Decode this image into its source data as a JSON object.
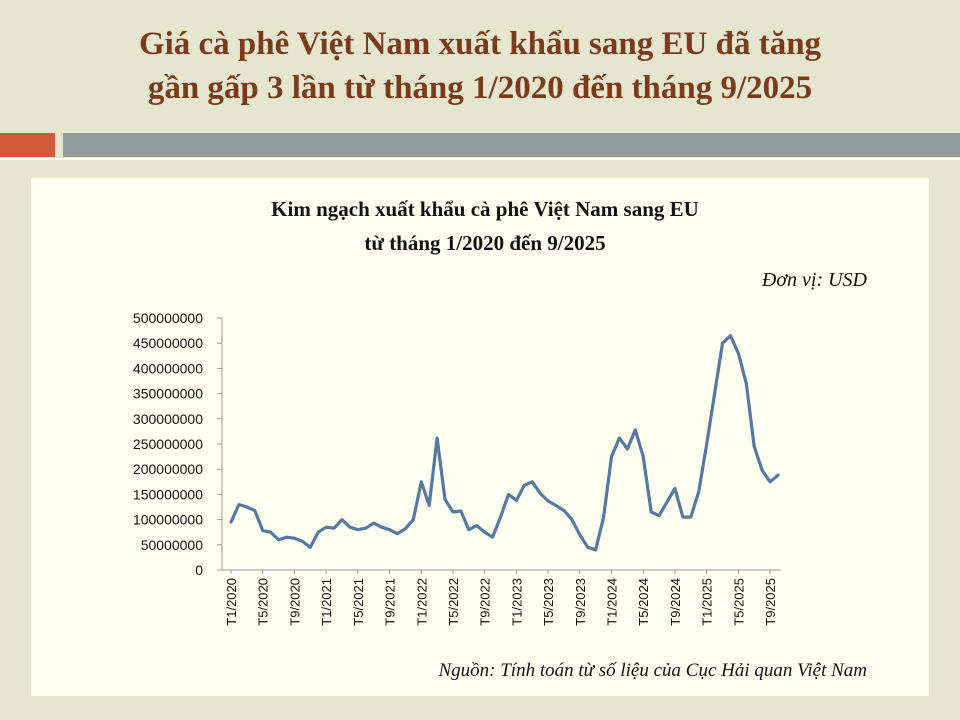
{
  "slide": {
    "title_line1": "Giá cà phê Việt Nam xuất khẩu sang EU đã tăng",
    "title_line2": "gần gấp 3 lần từ tháng 1/2020 đến tháng 9/2025"
  },
  "colors": {
    "background": "#e6e6cf",
    "title": "#7a3b1c",
    "accent_red": "#cf5b3c",
    "accent_gray": "#909c99",
    "line": "#5679a0"
  },
  "chart_data": {
    "type": "line",
    "title": "Kim ngạch xuất khẩu cà phê Việt Nam sang EU",
    "subtitle": "từ tháng  1/2020 đến  9/2025",
    "unit_label": "Đơn vị: USD",
    "source": "Nguồn: Tính toán từ số liệu của Cục Hải quan Việt Nam",
    "ylim": [
      0,
      500000000
    ],
    "yticks": [
      "500000000",
      "450000000",
      "400000000",
      "350000000",
      "300000000",
      "250000000",
      "200000000",
      "150000000",
      "100000000",
      "50000000",
      "0"
    ],
    "xtick_labels": [
      "T1/2020",
      "T5/2020",
      "T9/2020",
      "T1/2021",
      "T5/2021",
      "T9/2021",
      "T1/2022",
      "T5/2022",
      "T9/2022",
      "T1/2023",
      "T5/2023",
      "T9/2023",
      "T1/2024",
      "T5/2024",
      "T9/2024",
      "T1/2025",
      "T5/2025",
      "T9/2025"
    ],
    "grid": false,
    "legend": "none",
    "series": [
      {
        "values": [
          95000000,
          130000000,
          125000000,
          118000000,
          78000000,
          75000000,
          60000000,
          65000000,
          63000000,
          57000000,
          45000000,
          75000000,
          85000000,
          83000000,
          100000000,
          85000000,
          80000000,
          83000000,
          93000000,
          85000000,
          80000000,
          72000000,
          82000000,
          100000000,
          175000000,
          128000000,
          262000000,
          140000000,
          115000000,
          117000000,
          80000000,
          88000000,
          75000000,
          65000000,
          105000000,
          150000000,
          138000000,
          168000000,
          175000000,
          152000000,
          137000000,
          128000000,
          118000000,
          100000000,
          70000000,
          45000000,
          40000000,
          105000000,
          225000000,
          262000000,
          240000000,
          278000000,
          225000000,
          115000000,
          108000000,
          135000000,
          162000000,
          105000000,
          105000000,
          155000000,
          250000000,
          350000000,
          450000000,
          465000000,
          430000000,
          370000000,
          245000000,
          198000000,
          175000000,
          188000000
        ]
      }
    ]
  }
}
